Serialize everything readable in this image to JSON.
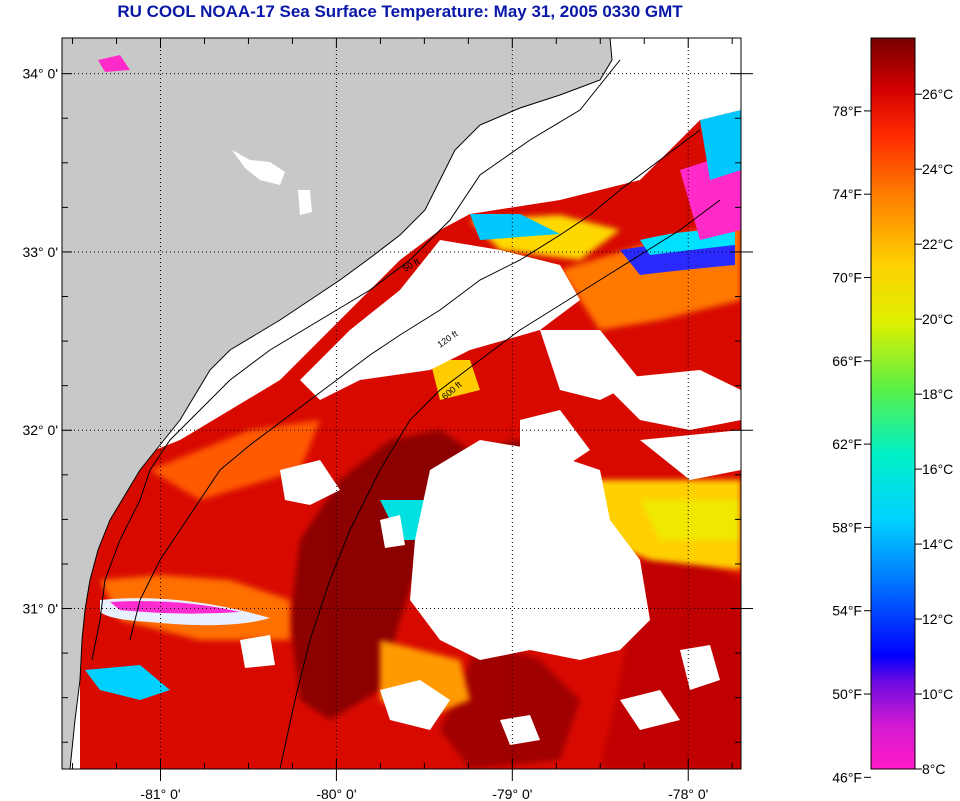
{
  "title": "RU COOL  NOAA-17  Sea Surface Temperature:  May 31, 2005 0330 GMT",
  "map": {
    "lat_labels": [
      "34° 0'",
      "33° 0'",
      "32° 0'",
      "31° 0'"
    ],
    "lon_labels": [
      "-81° 0'",
      "-80° 0'",
      "-79° 0'",
      "-78° 0'"
    ],
    "lat_values": [
      34,
      33,
      32,
      31
    ],
    "lon_values": [
      -81,
      -80,
      -79,
      -78
    ],
    "lat_range": [
      30.1,
      34.2
    ],
    "lon_range": [
      -81.56,
      -77.7
    ],
    "contour_labels": [
      "50 ft",
      "120 ft",
      "600 ft"
    ],
    "colors": {
      "land": "#c8c8c8",
      "cloud": "#ffffff",
      "warm_core": "#8c0000",
      "gulf_stream_red": "#d80a00",
      "shelf_orange": "#ff6a00"
    }
  },
  "colorbar": {
    "celsius_labels": [
      "26°C",
      "24°C",
      "22°C",
      "20°C",
      "18°C",
      "16°C",
      "14°C",
      "12°C",
      "10°C",
      "8°C"
    ],
    "celsius_values": [
      26,
      24,
      22,
      20,
      18,
      16,
      14,
      12,
      10,
      8
    ],
    "fahrenheit_labels": [
      "78°F",
      "74°F",
      "70°F",
      "66°F",
      "62°F",
      "58°F",
      "54°F",
      "50°F",
      "46°F"
    ],
    "fahrenheit_values": [
      78,
      74,
      70,
      66,
      62,
      58,
      54,
      50,
      46
    ],
    "range_c": [
      8,
      27.5
    ],
    "stops": [
      "#ff1ac8",
      "#8a1ad8",
      "#0000ff",
      "#00a0ff",
      "#00e8f0",
      "#30f070",
      "#c8f000",
      "#ffe800",
      "#ff9a00",
      "#ff3000",
      "#e00000",
      "#780000"
    ]
  }
}
